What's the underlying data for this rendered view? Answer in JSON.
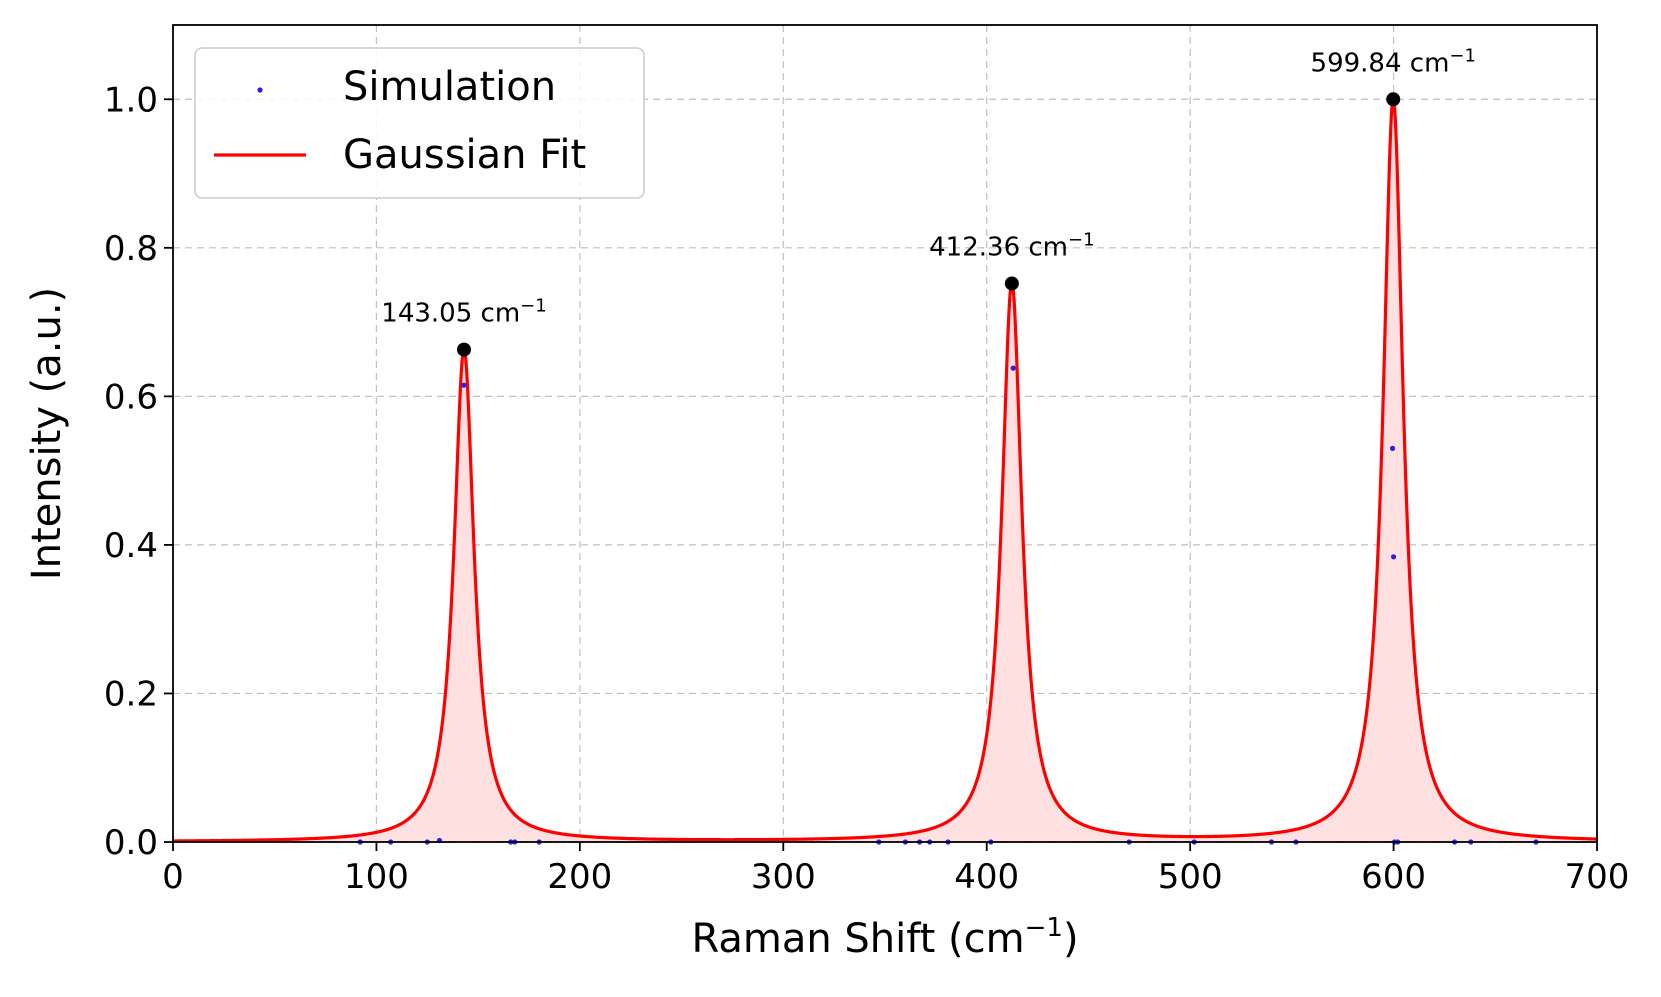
{
  "chart_data": {
    "type": "line",
    "title": "",
    "xlabel": "Raman Shift (cm",
    "xlabel_sup": "−1",
    "xlabel_close": ")",
    "ylabel": "Intensity (a.u.)",
    "xlim": [
      0,
      700
    ],
    "ylim": [
      0,
      1.1
    ],
    "xticks": [
      0,
      100,
      200,
      300,
      400,
      500,
      600,
      700
    ],
    "xtick_labels": [
      "0",
      "100",
      "200",
      "300",
      "400",
      "500",
      "600",
      "700"
    ],
    "yticks": [
      0.0,
      0.2,
      0.4,
      0.6,
      0.8,
      1.0
    ],
    "ytick_labels": [
      "0.0",
      "0.2",
      "0.4",
      "0.6",
      "0.8",
      "1.0"
    ],
    "grid": true,
    "legend": {
      "location": "top-left",
      "entries": [
        {
          "label": "Simulation",
          "style": "markers",
          "color": "#2a1ee8"
        },
        {
          "label": "Gaussian Fit",
          "style": "line",
          "color": "#ff0000"
        }
      ]
    },
    "fit": {
      "name": "Gaussian Fit",
      "color": "#ff0000",
      "fill_color": "#ffe0e0",
      "peaks": [
        {
          "center": 143.05,
          "amplitude": 0.663,
          "hwhm": 6
        },
        {
          "center": 412.36,
          "amplitude": 0.752,
          "hwhm": 6
        },
        {
          "center": 599.84,
          "amplitude": 1.0,
          "hwhm": 6
        }
      ]
    },
    "peak_markers": {
      "color": "#000000",
      "points": [
        {
          "x": 143.05,
          "y": 0.663,
          "label": "143.05 cm",
          "label_sup": "−1"
        },
        {
          "x": 412.36,
          "y": 0.752,
          "label": "412.36 cm",
          "label_sup": "−1"
        },
        {
          "x": 599.84,
          "y": 1.0,
          "label": "599.84 cm",
          "label_sup": "−1"
        }
      ]
    },
    "simulation": {
      "name": "Simulation",
      "color": "#2a1ee8",
      "points": [
        {
          "x": 92,
          "y": 0.0
        },
        {
          "x": 107,
          "y": 0.0
        },
        {
          "x": 125,
          "y": 0.0
        },
        {
          "x": 131,
          "y": 0.002
        },
        {
          "x": 143,
          "y": 0.615
        },
        {
          "x": 166,
          "y": 0.0
        },
        {
          "x": 168,
          "y": 0.0
        },
        {
          "x": 180,
          "y": 0.0
        },
        {
          "x": 347,
          "y": 0.0
        },
        {
          "x": 360,
          "y": 0.0
        },
        {
          "x": 367,
          "y": 0.0
        },
        {
          "x": 372,
          "y": 0.0
        },
        {
          "x": 381,
          "y": 0.0
        },
        {
          "x": 402,
          "y": 0.0
        },
        {
          "x": 413,
          "y": 0.638
        },
        {
          "x": 470,
          "y": 0.0
        },
        {
          "x": 502,
          "y": 0.0
        },
        {
          "x": 540,
          "y": 0.0
        },
        {
          "x": 552,
          "y": 0.0
        },
        {
          "x": 599.5,
          "y": 0.53
        },
        {
          "x": 600,
          "y": 0.384
        },
        {
          "x": 600.5,
          "y": 0.0
        },
        {
          "x": 602,
          "y": 0.0
        },
        {
          "x": 630,
          "y": 0.0
        },
        {
          "x": 638,
          "y": 0.0
        },
        {
          "x": 670,
          "y": 0.0
        }
      ]
    }
  }
}
